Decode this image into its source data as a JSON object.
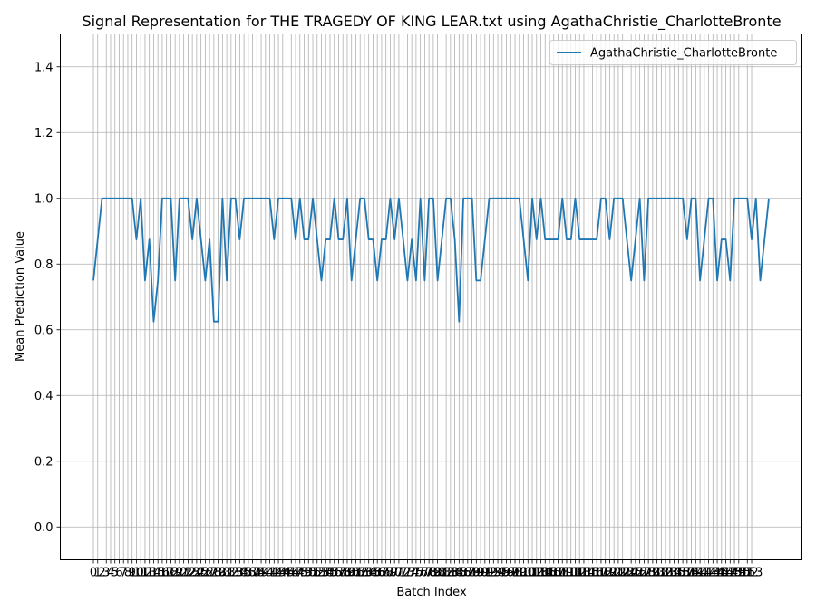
{
  "chart_data": {
    "type": "line",
    "title": "Signal Representation for THE TRAGEDY OF KING LEAR.txt using AgathaChristie_CharlotteBronte",
    "xlabel": "Batch Index",
    "ylabel": "Mean Prediction Value",
    "ylim": [
      -0.1,
      1.5
    ],
    "yticks": [
      "0.0",
      "0.2",
      "0.4",
      "0.6",
      "0.8",
      "1.0",
      "1.2",
      "1.4"
    ],
    "xticks_start": 0,
    "xticks_end": 153,
    "grid": true,
    "legend_position": "top-right",
    "colors": {
      "line": "#1f77b4",
      "grid": "#b0b0b0"
    },
    "series": [
      {
        "name": "AgathaChristie_CharlotteBronte",
        "values": [
          0.75,
          0.875,
          1,
          1,
          1,
          1,
          1,
          1,
          1,
          1,
          0.875,
          1,
          0.75,
          0.875,
          0.625,
          0.75,
          1,
          1,
          1,
          0.75,
          1,
          1,
          1,
          0.875,
          1,
          0.875,
          0.75,
          0.875,
          0.625,
          0.625,
          1,
          0.75,
          1,
          1,
          0.875,
          1,
          1,
          1,
          1,
          1,
          1,
          1,
          0.875,
          1,
          1,
          1,
          1,
          0.875,
          1,
          0.875,
          0.875,
          1,
          0.875,
          0.75,
          0.875,
          0.875,
          1,
          0.875,
          0.875,
          1,
          0.75,
          0.875,
          1,
          1,
          0.875,
          0.875,
          0.75,
          0.875,
          0.875,
          1,
          0.875,
          1,
          0.875,
          0.75,
          0.875,
          0.75,
          1,
          0.75,
          1,
          1,
          0.75,
          0.875,
          1,
          1,
          0.875,
          0.625,
          1,
          1,
          1,
          0.75,
          0.75,
          0.875,
          1,
          1,
          1,
          1,
          1,
          1,
          1,
          1,
          0.875,
          0.75,
          1,
          0.875,
          1,
          0.875,
          0.875,
          0.875,
          0.875,
          1,
          0.875,
          0.875,
          1,
          0.875,
          0.875,
          0.875,
          0.875,
          0.875,
          1,
          1,
          0.875,
          1,
          1,
          1,
          0.875,
          0.75,
          0.875,
          1,
          0.75,
          1,
          1,
          1,
          1,
          1,
          1,
          1,
          1,
          1,
          0.875,
          1,
          1,
          0.75,
          0.875,
          1,
          1,
          0.75,
          0.875,
          0.875,
          0.75,
          1,
          1,
          1,
          1,
          0.875,
          1,
          0.75,
          0.875,
          1
        ]
      }
    ]
  }
}
